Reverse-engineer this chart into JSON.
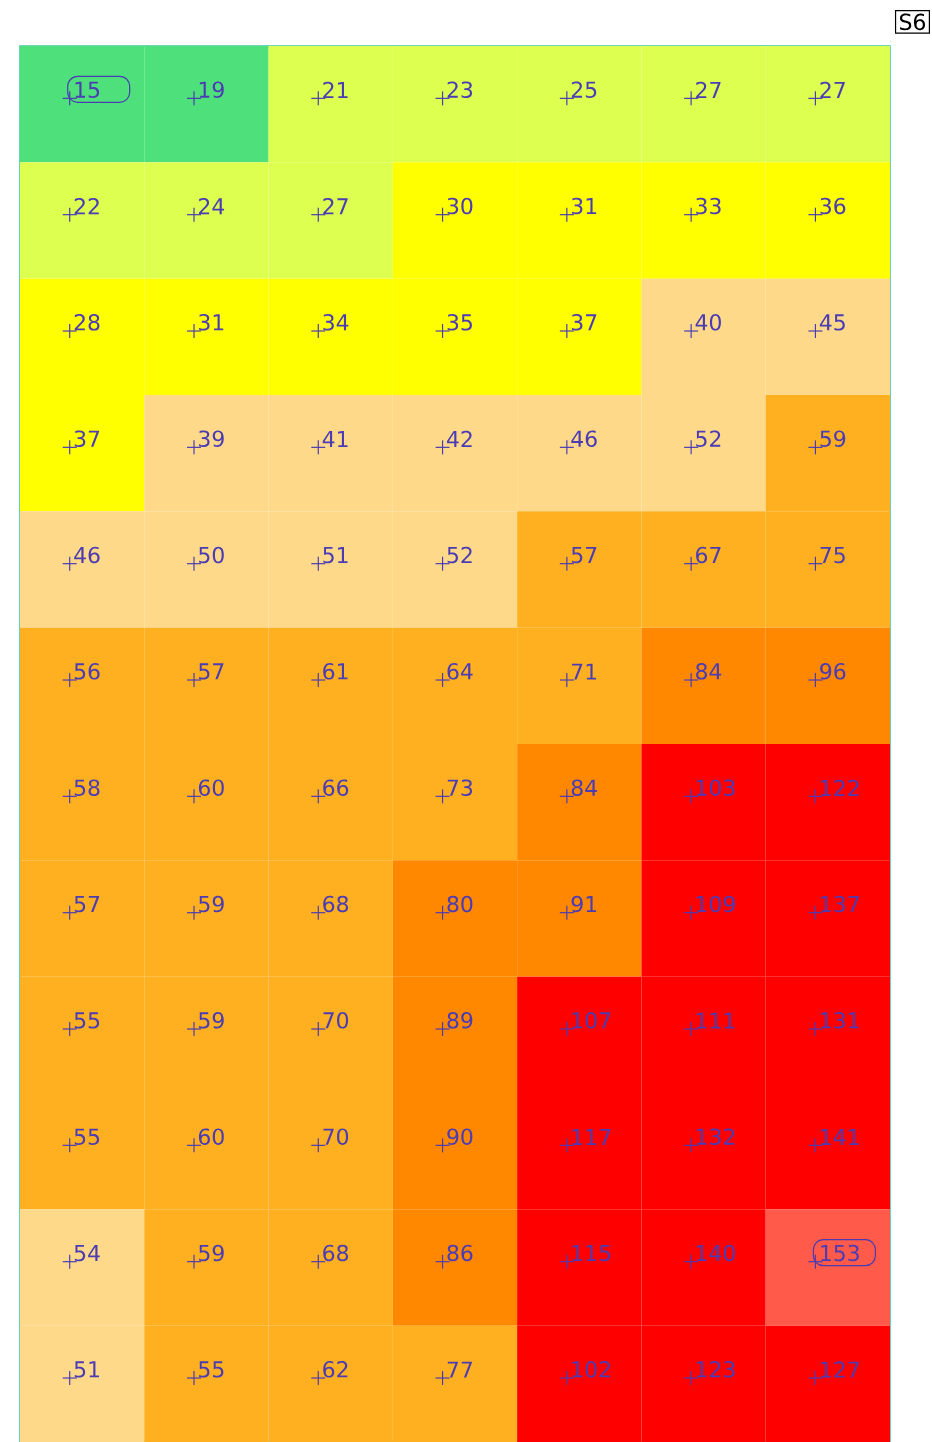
{
  "chart_data": {
    "type": "heatmap",
    "annotations": [
      "S6"
    ],
    "categories": [
      null,
      null,
      null,
      null,
      null,
      null,
      null
    ],
    "y_categories": [
      null,
      null,
      null,
      null,
      null,
      null,
      null,
      null,
      null,
      null,
      null,
      null
    ],
    "cells": [
      [
        15,
        19,
        21,
        23,
        25,
        27,
        27
      ],
      [
        22,
        24,
        27,
        30,
        31,
        33,
        36
      ],
      [
        28,
        31,
        34,
        35,
        37,
        40,
        45
      ],
      [
        37,
        39,
        41,
        42,
        46,
        52,
        59
      ],
      [
        46,
        50,
        51,
        52,
        57,
        67,
        75
      ],
      [
        56,
        57,
        61,
        64,
        71,
        84,
        96
      ],
      [
        58,
        60,
        66,
        73,
        84,
        103,
        122
      ],
      [
        57,
        59,
        68,
        80,
        91,
        109,
        137
      ],
      [
        55,
        59,
        70,
        89,
        107,
        111,
        131
      ],
      [
        55,
        60,
        70,
        90,
        117,
        132,
        141
      ],
      [
        54,
        59,
        68,
        86,
        115,
        140,
        153
      ],
      [
        51,
        55,
        62,
        77,
        102,
        123,
        127
      ]
    ],
    "cell_labels": [
      [
        "15",
        "19",
        "21",
        "23",
        "25",
        "27",
        "27"
      ],
      [
        "22",
        "24",
        "27",
        "30",
        "31",
        "33",
        "36"
      ],
      [
        "28",
        "31",
        "34",
        "35",
        "37",
        "40",
        "45"
      ],
      [
        "37",
        "39",
        "41",
        "42",
        "46",
        "52",
        "59"
      ],
      [
        "46",
        "50",
        "51",
        "52",
        "57",
        "67",
        "75"
      ],
      [
        "56",
        "57",
        "61",
        "64",
        "71",
        "84",
        "96"
      ],
      [
        "58",
        "60",
        "66",
        "73",
        "84",
        "103",
        "122"
      ],
      [
        "57",
        "59",
        "68",
        "80",
        "91",
        "109",
        "137"
      ],
      [
        "55",
        "59",
        "70",
        "89",
        "107",
        "111",
        "131"
      ],
      [
        "55",
        "60",
        "70",
        "90",
        "117",
        "132",
        "141"
      ],
      [
        "54",
        "59",
        "68",
        "86",
        "115",
        "140",
        "153"
      ],
      [
        "51",
        "55",
        "62",
        "77",
        "102",
        "123",
        "127"
      ]
    ]
  }
}
